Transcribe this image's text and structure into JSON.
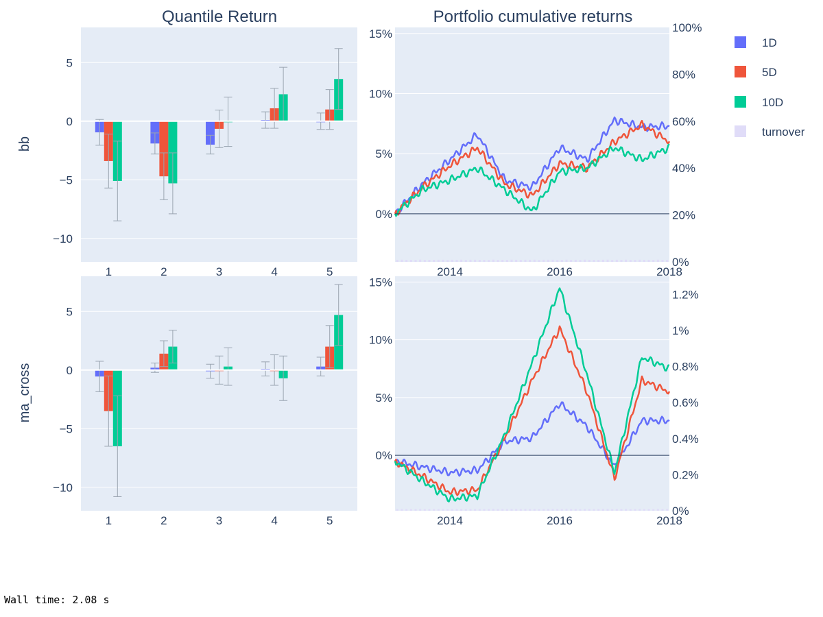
{
  "colors": {
    "1D": "#636efa",
    "5D": "#ef553b",
    "10D": "#00cc96",
    "turnover": "#e0dcf8",
    "plot_bg": "#e5ecf6",
    "grid": "#ffffff",
    "zero_line": "#2a3f5f",
    "text": "#2a3f5f",
    "error_bar": "#9aa5b1"
  },
  "titles": {
    "quantile": "Quantile Return",
    "portfolio": "Portfolio cumulative returns"
  },
  "row_labels": [
    "bb",
    "ma_cross"
  ],
  "legend": [
    "1D",
    "5D",
    "10D",
    "turnover"
  ],
  "footer": {
    "wall_time": "Wall time: 2.08 s"
  },
  "chart_data": [
    {
      "type": "bar",
      "factor": "bb",
      "categories": [
        "1",
        "2",
        "3",
        "4",
        "5"
      ],
      "series": [
        {
          "name": "1D",
          "values": [
            -0.95,
            -1.9,
            -2.0,
            0.1,
            0.0
          ],
          "error": [
            1.1,
            0.9,
            0.8,
            0.7,
            0.7
          ]
        },
        {
          "name": "5D",
          "values": [
            -3.4,
            -4.7,
            -0.65,
            1.1,
            1.0
          ],
          "error": [
            2.3,
            2.0,
            1.6,
            1.7,
            1.7
          ]
        },
        {
          "name": "10D",
          "values": [
            -5.1,
            -5.3,
            -0.05,
            2.3,
            3.6
          ],
          "error": [
            3.4,
            2.6,
            2.1,
            2.3,
            2.6
          ]
        }
      ],
      "ylim": [
        -12,
        8
      ],
      "yticks": [
        -10,
        -5,
        0,
        5
      ],
      "ytick_labels": [
        "−10",
        "−5",
        "0",
        "5"
      ]
    },
    {
      "type": "bar",
      "factor": "ma_cross",
      "categories": [
        "1",
        "2",
        "3",
        "4",
        "5"
      ],
      "series": [
        {
          "name": "1D",
          "values": [
            -0.55,
            0.2,
            -0.1,
            0.1,
            0.3
          ],
          "error": [
            1.3,
            0.4,
            0.6,
            0.6,
            0.8
          ]
        },
        {
          "name": "5D",
          "values": [
            -3.5,
            1.4,
            0.0,
            0.0,
            2.0
          ],
          "error": [
            3.0,
            1.1,
            1.2,
            1.3,
            1.8
          ]
        },
        {
          "name": "10D",
          "values": [
            -6.5,
            2.0,
            0.3,
            -0.7,
            4.7
          ],
          "error": [
            4.3,
            1.4,
            1.6,
            1.9,
            2.6
          ]
        }
      ],
      "ylim": [
        -12,
        8
      ],
      "yticks": [
        -10,
        -5,
        0,
        5
      ],
      "ytick_labels": [
        "−10",
        "−5",
        "0",
        "5"
      ]
    },
    {
      "type": "line",
      "factor": "bb",
      "x_dates": [
        "2013-01",
        "2013-07",
        "2014-01",
        "2014-07",
        "2015-01",
        "2015-07",
        "2016-01",
        "2016-07",
        "2017-01",
        "2017-07",
        "2018-01"
      ],
      "series": [
        {
          "name": "1D",
          "values": [
            0,
            2.5,
            4.5,
            6.6,
            2.8,
            2.2,
            5.5,
            4.5,
            7.8,
            7.2,
            7.3
          ]
        },
        {
          "name": "5D",
          "values": [
            0,
            2.2,
            4.0,
            5.5,
            2.5,
            1.5,
            4.2,
            3.8,
            6.0,
            7.4,
            6.0
          ]
        },
        {
          "name": "10D",
          "values": [
            0,
            2.0,
            2.8,
            3.8,
            2.0,
            0.2,
            3.5,
            3.8,
            5.5,
            4.5,
            5.5
          ]
        }
      ],
      "turnover": {
        "name": "turnover",
        "min": 0.81,
        "max": 0.97
      },
      "y_range": [
        -4,
        15.5
      ],
      "y_ticks": [
        0,
        5,
        10,
        15
      ],
      "y_tick_labels": [
        "0%",
        "5%",
        "10%",
        "15%"
      ],
      "y2_range": [
        0,
        100
      ],
      "y2_ticks": [
        0,
        20,
        40,
        60,
        80,
        100
      ],
      "y2_tick_labels": [
        "0%",
        "20%",
        "40%",
        "60%",
        "80%",
        "100%"
      ],
      "x_ticks": [
        "2014",
        "2016",
        "2018"
      ]
    },
    {
      "type": "line",
      "factor": "ma_cross",
      "x_dates": [
        "2013-01",
        "2013-07",
        "2014-01",
        "2014-07",
        "2015-01",
        "2015-07",
        "2016-01",
        "2016-07",
        "2017-01",
        "2017-07",
        "2018-01"
      ],
      "series": [
        {
          "name": "1D",
          "values": [
            -0.5,
            -1.0,
            -1.5,
            -1.3,
            1.2,
            1.5,
            4.5,
            2.5,
            -1.0,
            3.0,
            3.0
          ]
        },
        {
          "name": "5D",
          "values": [
            -0.5,
            -1.8,
            -3.2,
            -3.0,
            1.5,
            6.5,
            11.0,
            5.5,
            -2.0,
            6.5,
            5.5
          ]
        },
        {
          "name": "10D",
          "values": [
            -0.5,
            -2.2,
            -3.8,
            -3.5,
            1.8,
            8.0,
            14.5,
            7.0,
            -1.5,
            8.5,
            7.5
          ]
        }
      ],
      "turnover": {
        "name": "turnover",
        "min": 0.0085,
        "max": 0.0098
      },
      "y_range": [
        -4.8,
        15.5
      ],
      "y_ticks": [
        0,
        5,
        10,
        15
      ],
      "y_tick_labels": [
        "0%",
        "5%",
        "10%",
        "15%"
      ],
      "y2_range": [
        0,
        1.3
      ],
      "y2_ticks": [
        0,
        0.2,
        0.4,
        0.6,
        0.8,
        1.0,
        1.2
      ],
      "y2_tick_labels": [
        "0%",
        "0.2%",
        "0.4%",
        "0.6%",
        "0.8%",
        "1%",
        "1.2%"
      ],
      "x_ticks": [
        "2014",
        "2016",
        "2018"
      ]
    }
  ]
}
